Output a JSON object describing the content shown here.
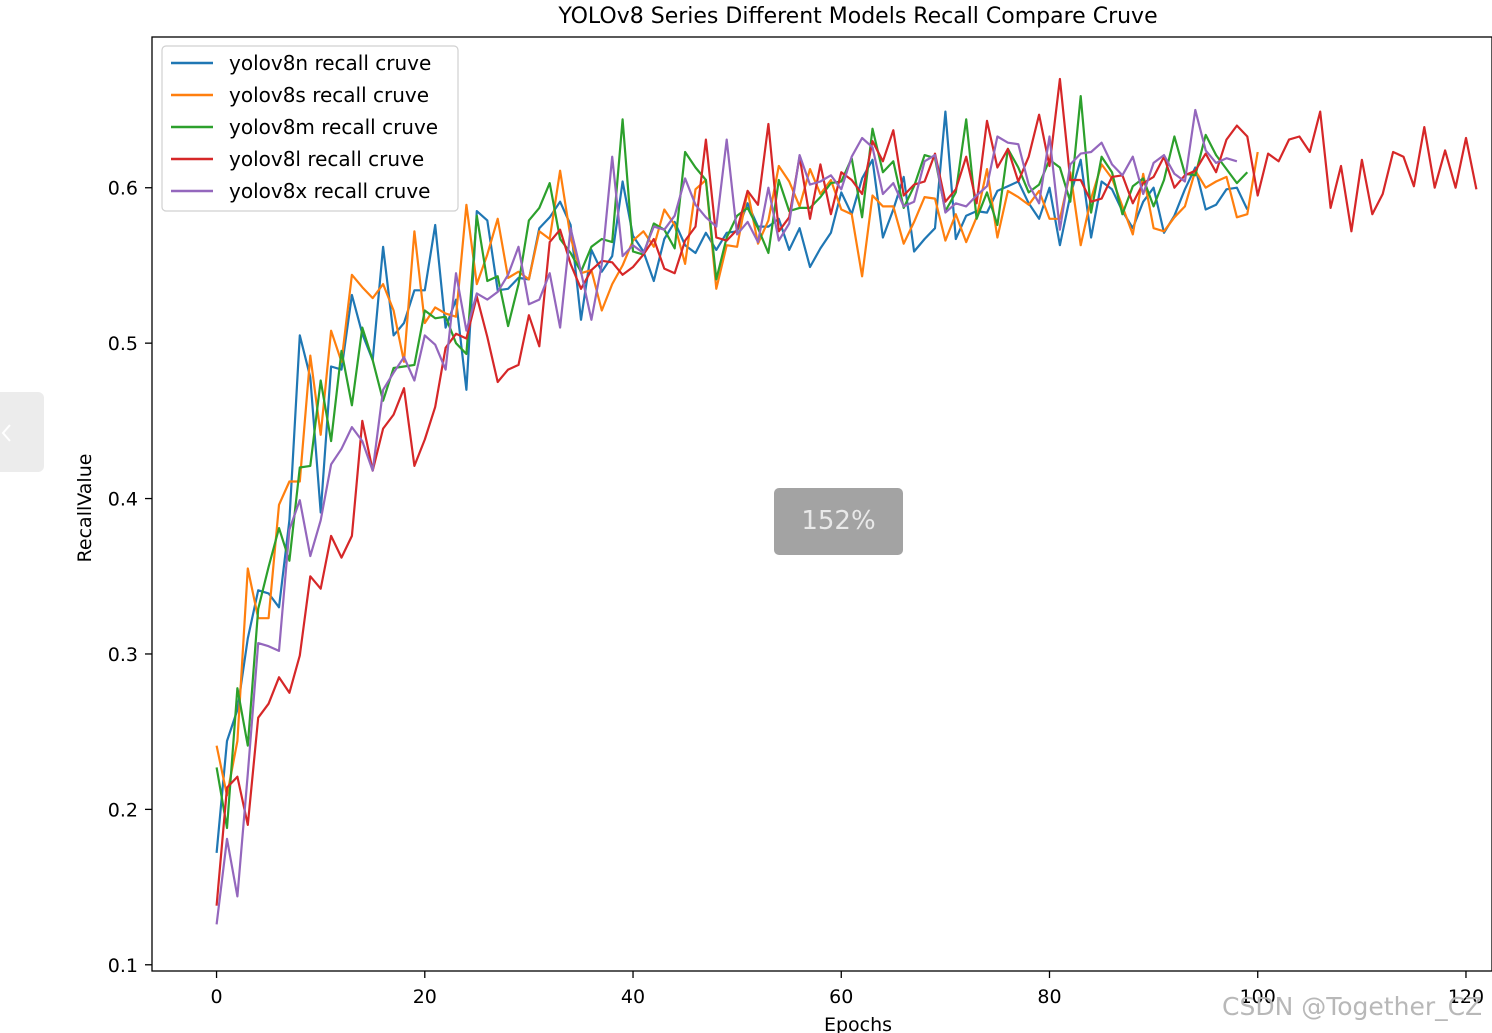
{
  "chart_data": {
    "type": "line",
    "title": "YOLOv8 Series Different Models Recall Compare Cruve",
    "xlabel": "Epochs",
    "ylabel": "RecallValue",
    "xlim": [
      -6.2,
      122.5
    ],
    "ylim": [
      0.096,
      0.697
    ],
    "xticks": [
      0,
      20,
      40,
      60,
      80,
      100,
      120
    ],
    "yticks": [
      0.1,
      0.2,
      0.3,
      0.4,
      0.5,
      0.6
    ],
    "grid": false,
    "legend_position": "upper-left",
    "series": [
      {
        "name": "yolov8n recall cruve",
        "color": "#1f77b4",
        "values": [
          0.172,
          0.244,
          0.264,
          0.31,
          0.341,
          0.339,
          0.33,
          0.386,
          0.505,
          0.478,
          0.391,
          0.485,
          0.483,
          0.531,
          0.506,
          0.489,
          0.562,
          0.505,
          0.513,
          0.534,
          0.534,
          0.576,
          0.51,
          0.528,
          0.47,
          0.585,
          0.579,
          0.534,
          0.535,
          0.542,
          0.541,
          0.574,
          0.581,
          0.591,
          0.576,
          0.515,
          0.56,
          0.546,
          0.556,
          0.604,
          0.569,
          0.559,
          0.54,
          0.567,
          0.578,
          0.563,
          0.558,
          0.571,
          0.56,
          0.571,
          0.572,
          0.59,
          0.575,
          0.575,
          0.58,
          0.56,
          0.574,
          0.549,
          0.561,
          0.571,
          0.597,
          0.583,
          0.606,
          0.618,
          0.568,
          0.586,
          0.607,
          0.559,
          0.567,
          0.574,
          0.649,
          0.567,
          0.582,
          0.585,
          0.584,
          0.598,
          0.601,
          0.604,
          0.59,
          0.58,
          0.6,
          0.563,
          0.595,
          0.618,
          0.568,
          0.604,
          0.599,
          0.585,
          0.574,
          0.591,
          0.6,
          0.571,
          0.582,
          0.599,
          0.613,
          0.586,
          0.589,
          0.599,
          0.6,
          0.586
        ]
      },
      {
        "name": "yolov8s recall cruve",
        "color": "#ff7f0e",
        "values": [
          0.241,
          0.209,
          0.244,
          0.355,
          0.323,
          0.323,
          0.396,
          0.411,
          0.411,
          0.492,
          0.441,
          0.508,
          0.488,
          0.544,
          0.536,
          0.529,
          0.538,
          0.521,
          0.488,
          0.572,
          0.513,
          0.523,
          0.519,
          0.517,
          0.589,
          0.538,
          0.557,
          0.58,
          0.542,
          0.546,
          0.541,
          0.572,
          0.567,
          0.611,
          0.568,
          0.545,
          0.547,
          0.521,
          0.538,
          0.55,
          0.566,
          0.572,
          0.562,
          0.586,
          0.576,
          0.551,
          0.599,
          0.605,
          0.535,
          0.563,
          0.562,
          0.598,
          0.564,
          0.579,
          0.614,
          0.604,
          0.588,
          0.612,
          0.596,
          0.605,
          0.586,
          0.583,
          0.543,
          0.595,
          0.588,
          0.588,
          0.564,
          0.578,
          0.594,
          0.593,
          0.566,
          0.583,
          0.565,
          0.581,
          0.612,
          0.568,
          0.598,
          0.594,
          0.589,
          0.598,
          0.58,
          0.58,
          0.61,
          0.563,
          0.593,
          0.615,
          0.606,
          0.588,
          0.57,
          0.609,
          0.574,
          0.572,
          0.581,
          0.588,
          0.611,
          0.6,
          0.604,
          0.607,
          0.581,
          0.583,
          0.623
        ]
      },
      {
        "name": "yolov8m recall cruve",
        "color": "#2ca02c",
        "values": [
          0.227,
          0.188,
          0.278,
          0.241,
          0.329,
          0.356,
          0.381,
          0.36,
          0.42,
          0.421,
          0.476,
          0.437,
          0.495,
          0.46,
          0.51,
          0.489,
          0.463,
          0.484,
          0.485,
          0.486,
          0.521,
          0.516,
          0.517,
          0.5,
          0.493,
          0.582,
          0.54,
          0.543,
          0.511,
          0.538,
          0.579,
          0.587,
          0.603,
          0.567,
          0.558,
          0.546,
          0.562,
          0.567,
          0.565,
          0.644,
          0.559,
          0.557,
          0.577,
          0.573,
          0.561,
          0.623,
          0.613,
          0.605,
          0.541,
          0.568,
          0.582,
          0.587,
          0.574,
          0.558,
          0.605,
          0.585,
          0.587,
          0.587,
          0.594,
          0.603,
          0.604,
          0.619,
          0.581,
          0.638,
          0.61,
          0.617,
          0.587,
          0.601,
          0.621,
          0.619,
          0.585,
          0.597,
          0.644,
          0.58,
          0.597,
          0.576,
          0.625,
          0.613,
          0.597,
          0.602,
          0.618,
          0.613,
          0.591,
          0.659,
          0.584,
          0.62,
          0.61,
          0.583,
          0.601,
          0.606,
          0.588,
          0.605,
          0.633,
          0.609,
          0.608,
          0.634,
          0.621,
          0.612,
          0.603,
          0.61
        ]
      },
      {
        "name": "yolov8l recall cruve",
        "color": "#d62728",
        "values": [
          0.138,
          0.214,
          0.221,
          0.19,
          0.259,
          0.268,
          0.285,
          0.275,
          0.299,
          0.35,
          0.342,
          0.376,
          0.362,
          0.376,
          0.45,
          0.418,
          0.445,
          0.454,
          0.471,
          0.421,
          0.438,
          0.459,
          0.497,
          0.506,
          0.503,
          0.53,
          0.504,
          0.475,
          0.483,
          0.486,
          0.518,
          0.498,
          0.565,
          0.573,
          0.551,
          0.535,
          0.547,
          0.553,
          0.552,
          0.544,
          0.549,
          0.557,
          0.567,
          0.548,
          0.545,
          0.566,
          0.575,
          0.631,
          0.568,
          0.566,
          0.573,
          0.598,
          0.589,
          0.641,
          0.572,
          0.581,
          0.62,
          0.58,
          0.615,
          0.583,
          0.61,
          0.605,
          0.596,
          0.63,
          0.617,
          0.637,
          0.595,
          0.602,
          0.604,
          0.622,
          0.591,
          0.599,
          0.62,
          0.59,
          0.643,
          0.613,
          0.625,
          0.604,
          0.62,
          0.647,
          0.614,
          0.67,
          0.605,
          0.605,
          0.591,
          0.593,
          0.607,
          0.608,
          0.59,
          0.603,
          0.607,
          0.62,
          0.6,
          0.608,
          0.611,
          0.622,
          0.61,
          0.631,
          0.64,
          0.633,
          0.595,
          0.622,
          0.617,
          0.631,
          0.633,
          0.623,
          0.649,
          0.587,
          0.614,
          0.572,
          0.618,
          0.583,
          0.596,
          0.623,
          0.62,
          0.601,
          0.639,
          0.6,
          0.624,
          0.6,
          0.632,
          0.599
        ]
      },
      {
        "name": "yolov8x recall cruve",
        "color": "#9467bd",
        "values": [
          0.126,
          0.181,
          0.144,
          0.223,
          0.307,
          0.305,
          0.302,
          0.38,
          0.399,
          0.363,
          0.386,
          0.422,
          0.432,
          0.446,
          0.437,
          0.418,
          0.47,
          0.481,
          0.491,
          0.476,
          0.505,
          0.499,
          0.483,
          0.545,
          0.508,
          0.532,
          0.528,
          0.533,
          0.544,
          0.562,
          0.525,
          0.528,
          0.545,
          0.51,
          0.574,
          0.546,
          0.515,
          0.551,
          0.62,
          0.556,
          0.563,
          0.558,
          0.575,
          0.573,
          0.582,
          0.606,
          0.589,
          0.581,
          0.575,
          0.631,
          0.57,
          0.578,
          0.565,
          0.6,
          0.566,
          0.577,
          0.621,
          0.602,
          0.604,
          0.608,
          0.599,
          0.62,
          0.632,
          0.626,
          0.596,
          0.603,
          0.588,
          0.591,
          0.617,
          0.621,
          0.584,
          0.59,
          0.588,
          0.595,
          0.601,
          0.633,
          0.629,
          0.628,
          0.602,
          0.59,
          0.633,
          0.573,
          0.615,
          0.622,
          0.623,
          0.629,
          0.615,
          0.608,
          0.62,
          0.596,
          0.616,
          0.621,
          0.609,
          0.604,
          0.65,
          0.624,
          0.616,
          0.619,
          0.617
        ]
      }
    ]
  },
  "overlay": {
    "zoom_label": "152%",
    "watermark": "CSDN @Together_CZ"
  }
}
